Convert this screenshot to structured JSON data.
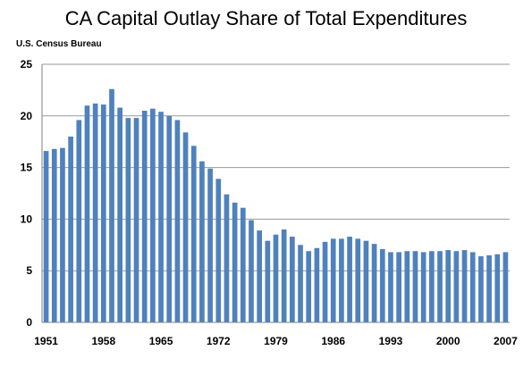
{
  "chart_data": {
    "type": "bar",
    "title": "CA Capital Outlay Share of Total Expenditures",
    "subtitle": "U.S. Census Bureau",
    "xlabel": "",
    "ylabel": "",
    "ylim": [
      0,
      25
    ],
    "yticks": [
      0,
      5,
      10,
      15,
      20,
      25
    ],
    "xtick_labels": [
      "1951",
      "1958",
      "1965",
      "1972",
      "1979",
      "1986",
      "1993",
      "2000",
      "2007"
    ],
    "grid": true,
    "legend": "none",
    "bar_color": "#4F81BD",
    "grid_color": "#999999",
    "x": [
      1951,
      1952,
      1953,
      1954,
      1955,
      1956,
      1957,
      1958,
      1959,
      1960,
      1961,
      1962,
      1963,
      1964,
      1965,
      1966,
      1967,
      1968,
      1969,
      1970,
      1971,
      1972,
      1973,
      1974,
      1975,
      1976,
      1977,
      1978,
      1979,
      1980,
      1981,
      1982,
      1983,
      1984,
      1985,
      1986,
      1987,
      1988,
      1989,
      1990,
      1991,
      1992,
      1993,
      1994,
      1995,
      1996,
      1997,
      1998,
      1999,
      2000,
      2001,
      2002,
      2003,
      2004,
      2005,
      2006,
      2007
    ],
    "values": [
      16.6,
      16.8,
      16.9,
      18.0,
      19.6,
      21.0,
      21.2,
      21.1,
      22.6,
      20.8,
      19.8,
      19.8,
      20.5,
      20.7,
      20.4,
      20.0,
      19.6,
      18.4,
      17.1,
      15.6,
      14.9,
      13.9,
      12.4,
      11.6,
      11.1,
      9.9,
      8.9,
      7.9,
      8.5,
      9.0,
      8.3,
      7.5,
      6.9,
      7.2,
      7.8,
      8.1,
      8.1,
      8.3,
      8.1,
      7.9,
      7.6,
      7.1,
      6.8,
      6.8,
      6.9,
      6.9,
      6.8,
      6.9,
      6.9,
      7.0,
      6.9,
      7.0,
      6.8,
      6.4,
      6.5,
      6.6,
      6.8
    ]
  }
}
